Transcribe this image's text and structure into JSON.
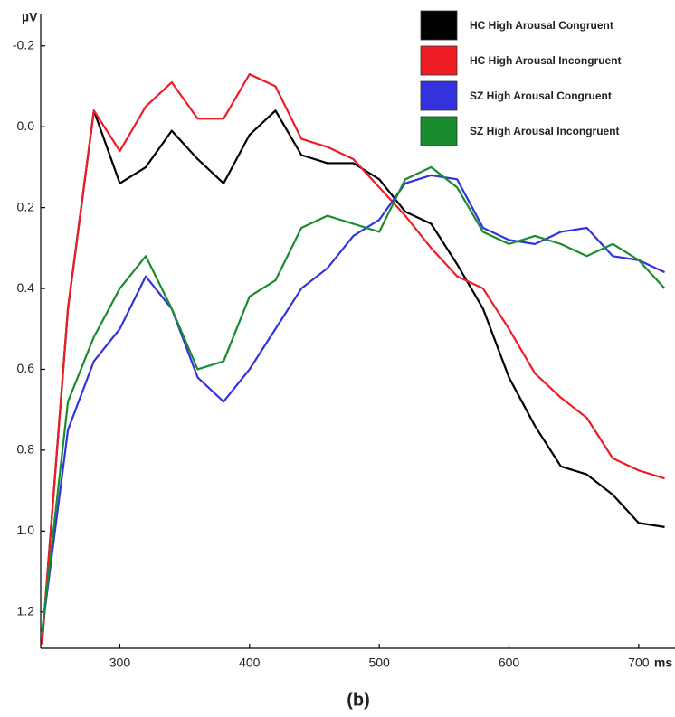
{
  "chart_data": {
    "type": "line",
    "caption": "(b)",
    "y_label": "µV",
    "x_label": "ms",
    "x": [
      240,
      260,
      280,
      300,
      320,
      340,
      360,
      380,
      400,
      420,
      440,
      460,
      480,
      500,
      520,
      540,
      560,
      580,
      600,
      620,
      640,
      660,
      680,
      700,
      720
    ],
    "series": [
      {
        "name": "HC High Arousal Congruent",
        "color": "#000000",
        "values": [
          1.28,
          0.45,
          -0.04,
          0.14,
          0.1,
          0.01,
          0.08,
          0.14,
          0.02,
          -0.04,
          0.07,
          0.09,
          0.09,
          0.13,
          0.21,
          0.24,
          0.34,
          0.45,
          0.62,
          0.74,
          0.84,
          0.86,
          0.91,
          0.98,
          0.99
        ]
      },
      {
        "name": "HC High Arousal Incongruent",
        "color": "#ee1c25",
        "values": [
          1.28,
          0.45,
          -0.04,
          0.06,
          -0.05,
          -0.11,
          -0.02,
          -0.02,
          -0.13,
          -0.1,
          0.03,
          0.05,
          0.08,
          0.15,
          0.22,
          0.3,
          0.37,
          0.4,
          0.5,
          0.61,
          0.67,
          0.72,
          0.82,
          0.85,
          0.87
        ]
      },
      {
        "name": "SZ High Arousal Congruent",
        "color": "#3333dd",
        "values": [
          1.25,
          0.75,
          0.58,
          0.5,
          0.37,
          0.45,
          0.62,
          0.68,
          0.6,
          0.5,
          0.4,
          0.35,
          0.27,
          0.23,
          0.14,
          0.12,
          0.13,
          0.25,
          0.28,
          0.29,
          0.26,
          0.25,
          0.32,
          0.33,
          0.36
        ]
      },
      {
        "name": "SZ High Arousal Incongruent",
        "color": "#1a8c2e",
        "values": [
          1.25,
          0.68,
          0.52,
          0.4,
          0.32,
          0.45,
          0.6,
          0.58,
          0.42,
          0.38,
          0.25,
          0.22,
          0.24,
          0.26,
          0.13,
          0.1,
          0.15,
          0.26,
          0.29,
          0.27,
          0.29,
          0.32,
          0.29,
          0.33,
          0.4
        ]
      }
    ],
    "xlim": [
      239,
      728
    ],
    "xticks": [
      300,
      400,
      500,
      600,
      700
    ],
    "ylim": [
      1.29,
      -0.28
    ],
    "yticks": [
      -0.2,
      {
        "value": 0,
        "label": "0.0"
      },
      0.2,
      0.4,
      0.6,
      0.8,
      {
        "value": 1,
        "label": "1.0"
      },
      1.2
    ],
    "legend": "top-right"
  }
}
